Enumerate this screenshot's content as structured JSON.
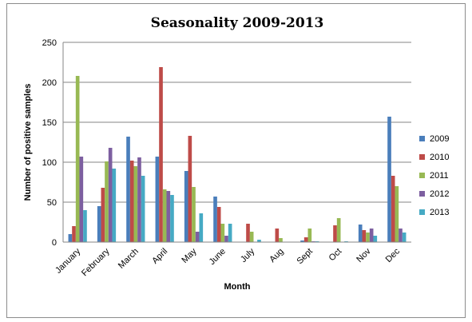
{
  "chart_data": {
    "type": "bar",
    "title": "Seasonality 2009-2013",
    "xlabel": "Month",
    "ylabel": "Number of positive samples",
    "ylim": [
      0,
      250
    ],
    "yticks": [
      0,
      50,
      100,
      150,
      200,
      250
    ],
    "grid": true,
    "legend_position": "right",
    "categories": [
      "January",
      "February",
      "March",
      "April",
      "May",
      "June",
      "July",
      "Aug",
      "Sept",
      "Oct",
      "Nov",
      "Dec"
    ],
    "series": [
      {
        "name": "2009",
        "color": "#4a7ebb",
        "values": [
          10,
          45,
          132,
          107,
          89,
          57,
          0,
          0,
          2,
          0,
          22,
          157
        ]
      },
      {
        "name": "2010",
        "color": "#be4b48",
        "values": [
          20,
          68,
          102,
          219,
          133,
          44,
          23,
          17,
          6,
          21,
          15,
          83
        ]
      },
      {
        "name": "2011",
        "color": "#98b954",
        "values": [
          208,
          101,
          95,
          66,
          69,
          23,
          13,
          5,
          17,
          30,
          12,
          70
        ]
      },
      {
        "name": "2012",
        "color": "#7d5fa0",
        "values": [
          107,
          118,
          106,
          64,
          13,
          8,
          0,
          0,
          1,
          0,
          17,
          17
        ]
      },
      {
        "name": "2013",
        "color": "#46aac4",
        "values": [
          40,
          92,
          83,
          59,
          36,
          23,
          3,
          0,
          1,
          1,
          8,
          12
        ]
      }
    ]
  }
}
